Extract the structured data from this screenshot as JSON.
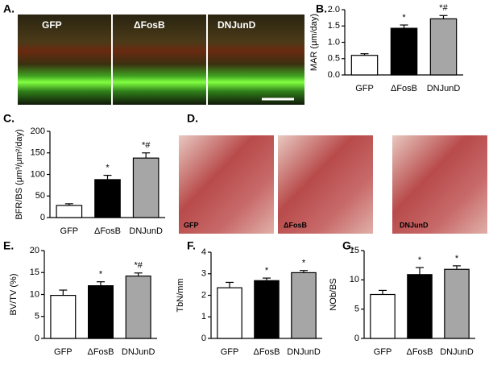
{
  "panel_a": {
    "label": "A.",
    "image_labels": [
      "GFP",
      "ΔFosB",
      "DNJunD"
    ]
  },
  "panel_d": {
    "label": "D.",
    "image_labels": [
      "GFP",
      "ΔFosB",
      "DNJunD"
    ]
  },
  "chart_data": [
    {
      "type": "bar",
      "panel_label": "B.",
      "ylabel": "MAR (μm/day)",
      "categories": [
        "GFP",
        "ΔFosB",
        "DNJunD"
      ],
      "values": [
        0.6,
        1.43,
        1.72
      ],
      "errors": [
        0.05,
        0.1,
        0.1
      ],
      "annotations": [
        null,
        "*",
        "*#"
      ],
      "colors": [
        "#ffffff",
        "#000000",
        "#a6a6a6"
      ],
      "ylim": [
        0,
        2
      ],
      "yticks": [
        {
          "value": 0,
          "label": "0.0"
        },
        {
          "value": 0.5,
          "label": "0.5"
        },
        {
          "value": 1,
          "label": "1.0"
        },
        {
          "value": 1.5,
          "label": "1.5"
        },
        {
          "value": 2,
          "label": "2.0"
        }
      ]
    },
    {
      "type": "bar",
      "panel_label": "C.",
      "ylabel": "BFR/BS (μm³/μm²/day)",
      "categories": [
        "GFP",
        "ΔFosB",
        "DNJunD"
      ],
      "values": [
        28,
        88,
        138
      ],
      "errors": [
        4,
        10,
        12
      ],
      "annotations": [
        null,
        "*",
        "*#"
      ],
      "colors": [
        "#ffffff",
        "#000000",
        "#a6a6a6"
      ],
      "ylim": [
        0,
        200
      ],
      "yticks": [
        0,
        50,
        100,
        150,
        200
      ]
    },
    {
      "type": "bar",
      "panel_label": "E.",
      "ylabel": "BV/TV (%)",
      "categories": [
        "GFP",
        "ΔFosB",
        "DNJunD"
      ],
      "values": [
        9.8,
        12.0,
        14.2
      ],
      "errors": [
        1.2,
        0.9,
        0.7
      ],
      "annotations": [
        null,
        "*",
        "*#"
      ],
      "colors": [
        "#ffffff",
        "#000000",
        "#a6a6a6"
      ],
      "ylim": [
        0,
        20
      ],
      "yticks": [
        0,
        5,
        10,
        15,
        20
      ]
    },
    {
      "type": "bar",
      "panel_label": "F.",
      "ylabel": "TbN/mm",
      "categories": [
        "GFP",
        "ΔFosB",
        "DNJunD"
      ],
      "values": [
        2.35,
        2.68,
        3.05
      ],
      "errors": [
        0.25,
        0.12,
        0.1
      ],
      "annotations": [
        null,
        "*",
        "*"
      ],
      "colors": [
        "#ffffff",
        "#000000",
        "#a6a6a6"
      ],
      "ylim": [
        0,
        4
      ],
      "yticks": [
        0,
        1,
        2,
        3,
        4
      ]
    },
    {
      "type": "bar",
      "panel_label": "G.",
      "ylabel": "NOb/BS",
      "categories": [
        "GFP",
        "ΔFosB",
        "DNJunD"
      ],
      "values": [
        7.5,
        10.9,
        11.8
      ],
      "errors": [
        0.7,
        1.2,
        0.6
      ],
      "annotations": [
        null,
        "*",
        "*"
      ],
      "colors": [
        "#ffffff",
        "#000000",
        "#a6a6a6"
      ],
      "ylim": [
        0,
        15
      ],
      "yticks": [
        0,
        5,
        10,
        15
      ]
    }
  ]
}
